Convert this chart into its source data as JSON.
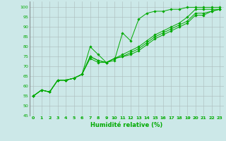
{
  "xlabel": "Humidité relative (%)",
  "xlim": [
    -0.5,
    23.5
  ],
  "ylim": [
    45,
    103
  ],
  "yticks": [
    45,
    50,
    55,
    60,
    65,
    70,
    75,
    80,
    85,
    90,
    95,
    100
  ],
  "xticks": [
    0,
    1,
    2,
    3,
    4,
    5,
    6,
    7,
    8,
    9,
    10,
    11,
    12,
    13,
    14,
    15,
    16,
    17,
    18,
    19,
    20,
    21,
    22,
    23
  ],
  "background_color": "#cce8e8",
  "grid_color": "#aabbbb",
  "line_color": "#00aa00",
  "series": [
    [
      55,
      58,
      57,
      63,
      63,
      64,
      66,
      80,
      76,
      72,
      73,
      87,
      83,
      94,
      97,
      98,
      98,
      99,
      99,
      100,
      100,
      100,
      100,
      100
    ],
    [
      55,
      58,
      57,
      63,
      63,
      64,
      66,
      74,
      72,
      72,
      74,
      76,
      78,
      80,
      83,
      86,
      88,
      90,
      92,
      95,
      99,
      99,
      99,
      99
    ],
    [
      55,
      58,
      57,
      63,
      63,
      64,
      66,
      75,
      73,
      72,
      74,
      75,
      77,
      79,
      82,
      85,
      87,
      89,
      91,
      93,
      97,
      97,
      98,
      99
    ],
    [
      55,
      58,
      57,
      63,
      63,
      64,
      66,
      75,
      73,
      72,
      74,
      75,
      76,
      78,
      81,
      84,
      86,
      88,
      90,
      92,
      96,
      96,
      98,
      99
    ]
  ]
}
